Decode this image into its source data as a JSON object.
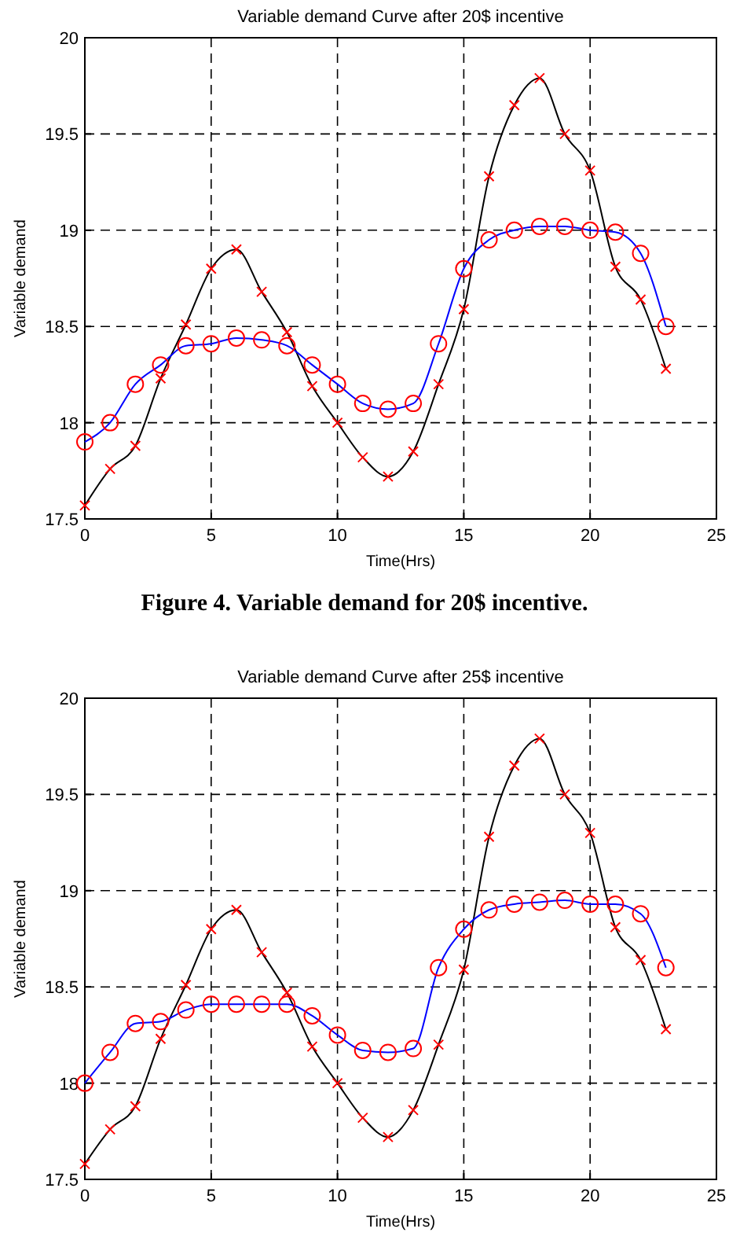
{
  "chart_data": [
    {
      "type": "line",
      "title": "Variable demand Curve after 20$ incentive",
      "xlabel": "Time(Hrs)",
      "ylabel": "Variable demand",
      "x": [
        0,
        1,
        2,
        3,
        4,
        5,
        6,
        7,
        8,
        9,
        10,
        11,
        12,
        13,
        14,
        15,
        16,
        17,
        18,
        19,
        20,
        21,
        22,
        23
      ],
      "series": [
        {
          "color": "#000000",
          "marker": "cross",
          "values": [
            17.57,
            17.76,
            17.88,
            18.23,
            18.51,
            18.8,
            18.9,
            18.68,
            18.47,
            18.19,
            18.0,
            17.82,
            17.72,
            17.85,
            18.2,
            18.59,
            19.28,
            19.65,
            19.79,
            19.5,
            19.31,
            18.81,
            18.64,
            18.28
          ]
        },
        {
          "color": "#0000ff",
          "marker": "circle",
          "values": [
            17.9,
            18.0,
            18.2,
            18.3,
            18.4,
            18.41,
            18.44,
            18.43,
            18.4,
            18.3,
            18.2,
            18.1,
            18.07,
            18.1,
            18.41,
            18.8,
            18.95,
            19.0,
            19.02,
            19.02,
            19.0,
            18.99,
            18.88,
            18.5
          ]
        }
      ],
      "xlim": [
        0,
        25
      ],
      "xticks": [
        0,
        5,
        10,
        15,
        20,
        25
      ],
      "ylim": [
        17.5,
        20
      ],
      "yticks": [
        17.5,
        18,
        18.5,
        19,
        19.5,
        20
      ],
      "grid": true,
      "line_style": "solid",
      "annotations": [
        "Figure 4. Variable demand for 20$ incentive."
      ]
    },
    {
      "type": "line",
      "title": "Variable demand Curve after 25$ incentive",
      "xlabel": "Time(Hrs)",
      "ylabel": "Variable demand",
      "x": [
        0,
        1,
        2,
        3,
        4,
        5,
        6,
        7,
        8,
        9,
        10,
        11,
        12,
        13,
        14,
        15,
        16,
        17,
        18,
        19,
        20,
        21,
        22,
        23
      ],
      "series": [
        {
          "color": "#000000",
          "marker": "cross",
          "values": [
            17.58,
            17.76,
            17.88,
            18.23,
            18.51,
            18.8,
            18.9,
            18.68,
            18.47,
            18.19,
            18.0,
            17.82,
            17.72,
            17.86,
            18.2,
            18.59,
            19.28,
            19.65,
            19.79,
            19.5,
            19.3,
            18.81,
            18.64,
            18.28
          ]
        },
        {
          "color": "#0000ff",
          "marker": "circle",
          "values": [
            18.0,
            18.16,
            18.31,
            18.32,
            18.38,
            18.41,
            18.41,
            18.41,
            18.41,
            18.35,
            18.25,
            18.17,
            18.16,
            18.18,
            18.6,
            18.8,
            18.9,
            18.93,
            18.94,
            18.95,
            18.93,
            18.93,
            18.88,
            18.6
          ]
        }
      ],
      "xlim": [
        0,
        25
      ],
      "xticks": [
        0,
        5,
        10,
        15,
        20,
        25
      ],
      "ylim": [
        17.5,
        20
      ],
      "yticks": [
        17.5,
        18,
        18.5,
        19,
        19.5,
        20
      ],
      "grid": true,
      "line_style": "solid"
    }
  ]
}
